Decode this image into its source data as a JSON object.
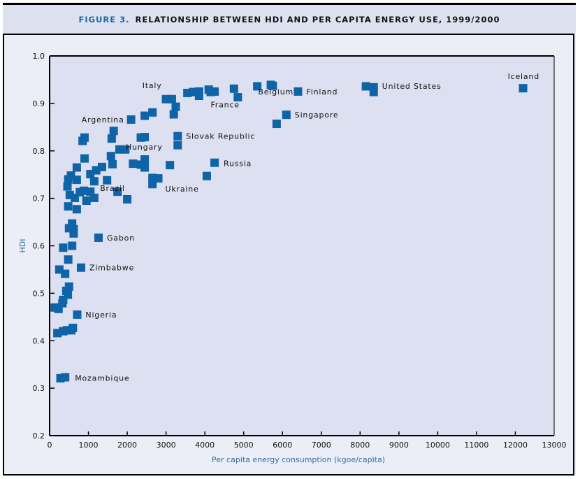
{
  "header": {
    "figure_number": "FIGURE 3.",
    "title": "RELATIONSHIP BETWEEN HDI AND PER CAPITA ENERGY USE, 1999/2000"
  },
  "colors": {
    "marker": "#0f64a8",
    "plot_bg": "#dce0f0",
    "axis_title": "#2c6ea6",
    "fig_number": "#1a6aa8"
  },
  "chart_data": {
    "type": "scatter",
    "title": "RELATIONSHIP BETWEEN HDI AND PER CAPITA ENERGY USE, 1999/2000",
    "xlabel": "Per capita energy consumption (kgoe/capita)",
    "ylabel": "HDI",
    "xlim": [
      0,
      13000
    ],
    "ylim": [
      0.2,
      1.0
    ],
    "xticks": [
      "0",
      "1000",
      "2000",
      "3000",
      "4000",
      "5000",
      "6000",
      "7000",
      "8000",
      "9000",
      "10000",
      "11000",
      "12000",
      "13000"
    ],
    "yticks": [
      "0.2",
      "0.3",
      "0.4",
      "0.5",
      "0.6",
      "0.7",
      "0.8",
      "0.9",
      "1.0"
    ],
    "grid": false,
    "labeled_points": [
      {
        "name": "Iceland",
        "x": 12200,
        "y": 0.932
      },
      {
        "name": "United States",
        "x": 8350,
        "y": 0.934
      },
      {
        "name": "Finland",
        "x": 6400,
        "y": 0.925
      },
      {
        "name": "Belgium",
        "x": 5750,
        "y": 0.937
      },
      {
        "name": "Singapore",
        "x": 6100,
        "y": 0.876
      },
      {
        "name": "Italy",
        "x": 3000,
        "y": 0.909
      },
      {
        "name": "France",
        "x": 4150,
        "y": 0.924
      },
      {
        "name": "Argentina",
        "x": 2100,
        "y": 0.866
      },
      {
        "name": "Hungary",
        "x": 2450,
        "y": 0.829
      },
      {
        "name": "Slovak Republic",
        "x": 3300,
        "y": 0.831
      },
      {
        "name": "Russia",
        "x": 4250,
        "y": 0.775
      },
      {
        "name": "Ukraine",
        "x": 2800,
        "y": 0.742
      },
      {
        "name": "Brazil",
        "x": 1480,
        "y": 0.738
      },
      {
        "name": "Gabon",
        "x": 1260,
        "y": 0.617
      },
      {
        "name": "Zimbabwe",
        "x": 810,
        "y": 0.554
      },
      {
        "name": "Nigeria",
        "x": 710,
        "y": 0.455
      },
      {
        "name": "Mozambique",
        "x": 400,
        "y": 0.323
      }
    ],
    "other_points": [
      {
        "x": 8150,
        "y": 0.936
      },
      {
        "x": 8350,
        "y": 0.924
      },
      {
        "x": 5700,
        "y": 0.939
      },
      {
        "x": 5350,
        "y": 0.936
      },
      {
        "x": 5850,
        "y": 0.857
      },
      {
        "x": 4750,
        "y": 0.931
      },
      {
        "x": 4850,
        "y": 0.913
      },
      {
        "x": 4100,
        "y": 0.929
      },
      {
        "x": 4250,
        "y": 0.925
      },
      {
        "x": 3850,
        "y": 0.925
      },
      {
        "x": 3700,
        "y": 0.924
      },
      {
        "x": 3550,
        "y": 0.922
      },
      {
        "x": 3850,
        "y": 0.916
      },
      {
        "x": 3150,
        "y": 0.909
      },
      {
        "x": 3250,
        "y": 0.893
      },
      {
        "x": 3200,
        "y": 0.877
      },
      {
        "x": 2450,
        "y": 0.874
      },
      {
        "x": 2650,
        "y": 0.881
      },
      {
        "x": 2350,
        "y": 0.828
      },
      {
        "x": 3300,
        "y": 0.812
      },
      {
        "x": 1650,
        "y": 0.842
      },
      {
        "x": 1600,
        "y": 0.826
      },
      {
        "x": 900,
        "y": 0.828
      },
      {
        "x": 850,
        "y": 0.821
      },
      {
        "x": 1800,
        "y": 0.803
      },
      {
        "x": 1950,
        "y": 0.803
      },
      {
        "x": 1580,
        "y": 0.789
      },
      {
        "x": 1620,
        "y": 0.772
      },
      {
        "x": 2150,
        "y": 0.773
      },
      {
        "x": 2350,
        "y": 0.771
      },
      {
        "x": 2450,
        "y": 0.782
      },
      {
        "x": 2450,
        "y": 0.765
      },
      {
        "x": 3100,
        "y": 0.77
      },
      {
        "x": 4050,
        "y": 0.747
      },
      {
        "x": 2650,
        "y": 0.73
      },
      {
        "x": 2650,
        "y": 0.743
      },
      {
        "x": 900,
        "y": 0.784
      },
      {
        "x": 700,
        "y": 0.765
      },
      {
        "x": 1350,
        "y": 0.766
      },
      {
        "x": 1200,
        "y": 0.759
      },
      {
        "x": 1050,
        "y": 0.751
      },
      {
        "x": 1150,
        "y": 0.736
      },
      {
        "x": 550,
        "y": 0.748
      },
      {
        "x": 480,
        "y": 0.74
      },
      {
        "x": 460,
        "y": 0.725
      },
      {
        "x": 700,
        "y": 0.739
      },
      {
        "x": 520,
        "y": 0.707
      },
      {
        "x": 880,
        "y": 0.716
      },
      {
        "x": 1050,
        "y": 0.714
      },
      {
        "x": 780,
        "y": 0.713
      },
      {
        "x": 650,
        "y": 0.701
      },
      {
        "x": 1150,
        "y": 0.701
      },
      {
        "x": 950,
        "y": 0.695
      },
      {
        "x": 1750,
        "y": 0.714
      },
      {
        "x": 2000,
        "y": 0.698
      },
      {
        "x": 480,
        "y": 0.683
      },
      {
        "x": 700,
        "y": 0.677
      },
      {
        "x": 580,
        "y": 0.647
      },
      {
        "x": 500,
        "y": 0.637
      },
      {
        "x": 620,
        "y": 0.635
      },
      {
        "x": 620,
        "y": 0.626
      },
      {
        "x": 350,
        "y": 0.596
      },
      {
        "x": 580,
        "y": 0.6
      },
      {
        "x": 480,
        "y": 0.571
      },
      {
        "x": 250,
        "y": 0.55
      },
      {
        "x": 400,
        "y": 0.541
      },
      {
        "x": 500,
        "y": 0.514
      },
      {
        "x": 430,
        "y": 0.505
      },
      {
        "x": 470,
        "y": 0.497
      },
      {
        "x": 350,
        "y": 0.486
      },
      {
        "x": 330,
        "y": 0.479
      },
      {
        "x": 130,
        "y": 0.47
      },
      {
        "x": 230,
        "y": 0.467
      },
      {
        "x": 200,
        "y": 0.416
      },
      {
        "x": 350,
        "y": 0.42
      },
      {
        "x": 450,
        "y": 0.422
      },
      {
        "x": 560,
        "y": 0.422
      },
      {
        "x": 600,
        "y": 0.427
      },
      {
        "x": 280,
        "y": 0.321
      }
    ]
  }
}
